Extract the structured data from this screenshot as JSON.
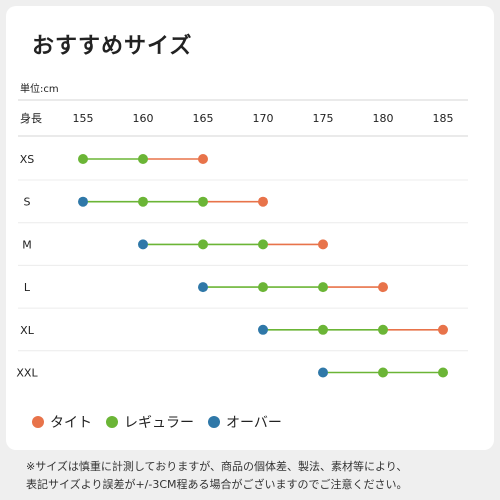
{
  "title": "おすすめサイズ",
  "unit_label": "単位:cm",
  "height_label": "身長",
  "legend": [
    {
      "label": "タイト",
      "color": "#e8734a"
    },
    {
      "label": "レギュラー",
      "color": "#6bb536"
    },
    {
      "label": "オーバー",
      "color": "#2f78a8"
    }
  ],
  "note_line1": "※サイズは慎重に計測しておりますが、商品の個体差、製法、素材等により、",
  "note_line2": "表記サイズより誤差が+/-3CM程ある場合がございますのでご注意ください。",
  "chart_data": {
    "type": "range-dot",
    "x_ticks": [
      155,
      160,
      165,
      170,
      175,
      180,
      185
    ],
    "xlim": [
      155,
      185
    ],
    "categories": [
      "XS",
      "S",
      "M",
      "L",
      "XL",
      "XXL"
    ],
    "rows": [
      {
        "size": "XS",
        "overbar": null,
        "regular": [
          155,
          160
        ],
        "tight": 165
      },
      {
        "size": "S",
        "overbar": 155,
        "regular": [
          160,
          165
        ],
        "tight": 170
      },
      {
        "size": "M",
        "overbar": 160,
        "regular": [
          165,
          170
        ],
        "tight": 175
      },
      {
        "size": "L",
        "overbar": 165,
        "regular": [
          170,
          175
        ],
        "tight": 180
      },
      {
        "size": "XL",
        "overbar": 170,
        "regular": [
          175,
          180
        ],
        "tight": 185
      },
      {
        "size": "XXL",
        "overbar": 175,
        "regular": [
          180,
          185
        ],
        "tight": null
      }
    ],
    "colors": {
      "tight": "#e8734a",
      "regular": "#6bb536",
      "overbar": "#2f78a8"
    }
  }
}
